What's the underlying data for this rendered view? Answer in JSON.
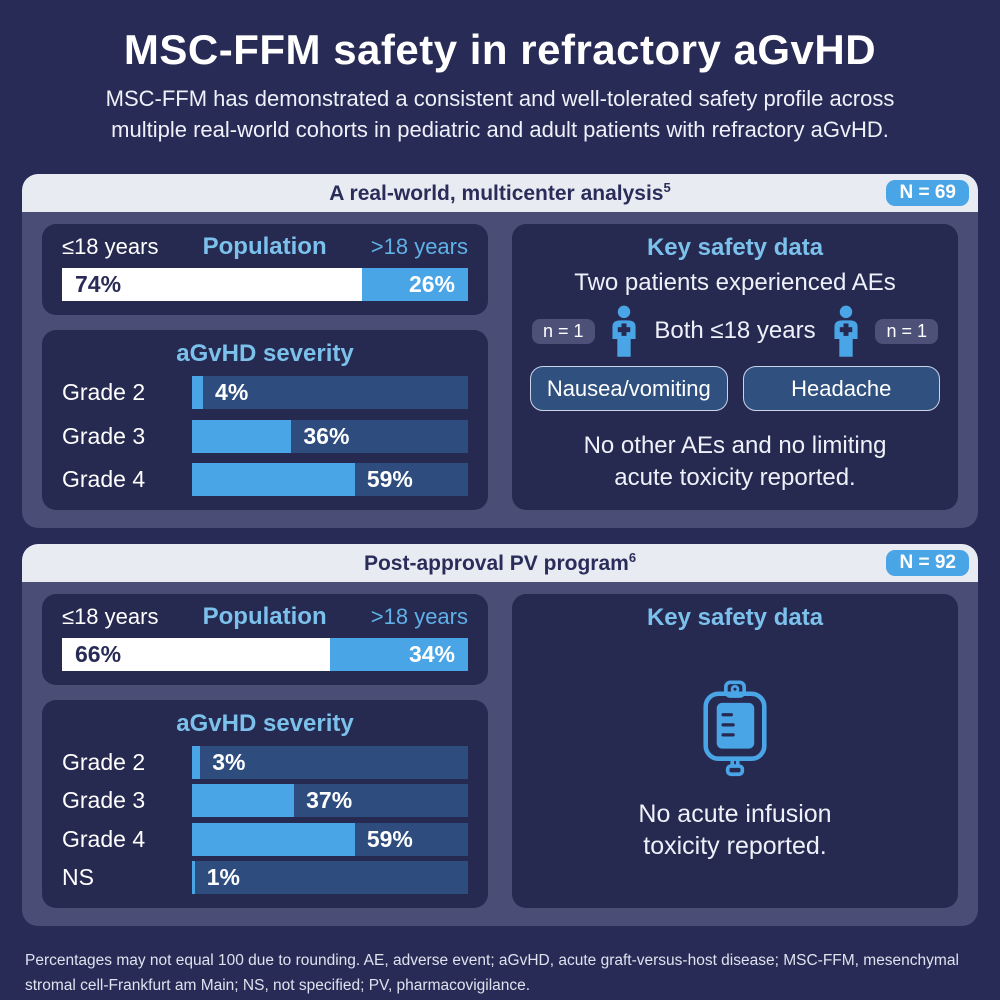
{
  "page": {
    "title": "MSC-FFM safety in refractory aGvHD",
    "subtitle_line1": "MSC-FFM has demonstrated a consistent and well-tolerated safety profile across",
    "subtitle_line2": "multiple real-world cohorts in pediatric and adult patients with refractory aGvHD.",
    "footnote_line1": "Percentages may not equal 100 due to rounding. AE, adverse event; aGvHD, acute graft-versus-host disease; MSC-FFM, mesenchymal",
    "footnote_line2": "stromal cell-Frankfurt am Main; NS, not specified; PV, pharmacovigilance."
  },
  "colors": {
    "page_bg": "#282b55",
    "panel_bg": "#4a4d75",
    "card_bg": "#262a50",
    "header_bg": "#e9ebf3",
    "header_text": "#2a2d5a",
    "accent_blue": "#4aa5e6",
    "track_blue": "#2e4d7e",
    "light_blue_text": "#7cc1ec",
    "pill_bg": "#30507f",
    "pill_border": "#c9d4e8"
  },
  "panels": [
    {
      "header": "A real-world, multicenter analysis",
      "header_superscript": "5",
      "n_badge": "N = 69",
      "population": {
        "left_label": "≤18 years",
        "title": "Population",
        "right_label": ">18 years",
        "left_value": "74%",
        "left_pct": 74,
        "right_value": "26%",
        "right_pct": 26
      },
      "severity": {
        "title": "aGvHD severity",
        "rows": [
          {
            "label": "Grade 2",
            "value": "4%",
            "pct": 4
          },
          {
            "label": "Grade 3",
            "value": "36%",
            "pct": 36
          },
          {
            "label": "Grade 4",
            "value": "59%",
            "pct": 59
          }
        ]
      },
      "key_safety": {
        "title": "Key safety data",
        "line1": "Two patients experienced AEs",
        "badge_left": "n = 1",
        "icon_left": "patient-icon",
        "middle_text": "Both ≤18 years",
        "icon_right": "patient-icon",
        "badge_right": "n = 1",
        "pill_left": "Nausea/vomiting",
        "pill_right": "Headache",
        "note_line1": "No other AEs and no limiting",
        "note_line2": "acute toxicity reported."
      }
    },
    {
      "header": "Post-approval PV program",
      "header_superscript": "6",
      "n_badge": "N = 92",
      "population": {
        "left_label": "≤18 years",
        "title": "Population",
        "right_label": ">18 years",
        "left_value": "66%",
        "left_pct": 66,
        "right_value": "34%",
        "right_pct": 34
      },
      "severity": {
        "title": "aGvHD severity",
        "rows": [
          {
            "label": "Grade 2",
            "value": "3%",
            "pct": 3
          },
          {
            "label": "Grade 3",
            "value": "37%",
            "pct": 37
          },
          {
            "label": "Grade 4",
            "value": "59%",
            "pct": 59
          },
          {
            "label": "NS",
            "value": "1%",
            "pct": 1
          }
        ]
      },
      "key_safety": {
        "title": "Key safety data",
        "icon": "iv-bag-icon",
        "note_line1": "No acute infusion",
        "note_line2": "toxicity reported."
      }
    }
  ],
  "chart_data": [
    {
      "type": "bar",
      "title": "Population — A real-world, multicenter analysis (N = 69)",
      "categories": [
        "≤18 years",
        ">18 years"
      ],
      "values": [
        74,
        26
      ],
      "unit": "%",
      "orientation": "horizontal-stacked"
    },
    {
      "type": "bar",
      "title": "aGvHD severity — A real-world, multicenter analysis (N = 69)",
      "categories": [
        "Grade 2",
        "Grade 3",
        "Grade 4"
      ],
      "values": [
        4,
        36,
        59
      ],
      "unit": "%",
      "xlim": [
        0,
        100
      ],
      "orientation": "horizontal"
    },
    {
      "type": "bar",
      "title": "Population — Post-approval PV program (N = 92)",
      "categories": [
        "≤18 years",
        ">18 years"
      ],
      "values": [
        66,
        34
      ],
      "unit": "%",
      "orientation": "horizontal-stacked"
    },
    {
      "type": "bar",
      "title": "aGvHD severity — Post-approval PV program (N = 92)",
      "categories": [
        "Grade 2",
        "Grade 3",
        "Grade 4",
        "NS"
      ],
      "values": [
        3,
        37,
        59,
        1
      ],
      "unit": "%",
      "xlim": [
        0,
        100
      ],
      "orientation": "horizontal"
    }
  ]
}
